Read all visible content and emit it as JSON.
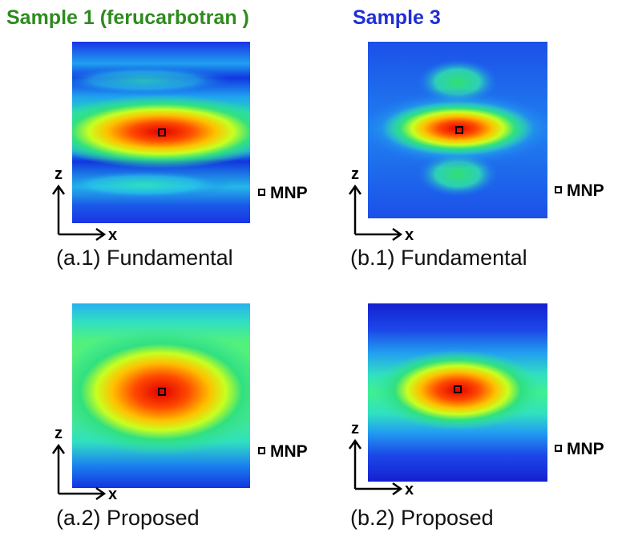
{
  "titles": {
    "sample1": "Sample 1 (ferucarbotran )",
    "sample3": "Sample 3"
  },
  "colors": {
    "sample1_title": "#2e8b1e",
    "sample3_title": "#1f2fd6"
  },
  "axis_labels": {
    "z": "z",
    "x": "x"
  },
  "legend": {
    "marker_label": "MNP",
    "marker_icon": "square-marker-icon"
  },
  "panels": [
    {
      "id": "a1",
      "caption": "(a.1) Fundamental"
    },
    {
      "id": "b1",
      "caption": "(b.1) Fundamental"
    },
    {
      "id": "a2",
      "caption": "(a.2) Proposed"
    },
    {
      "id": "b2",
      "caption": "(b.2) Proposed"
    }
  ]
}
